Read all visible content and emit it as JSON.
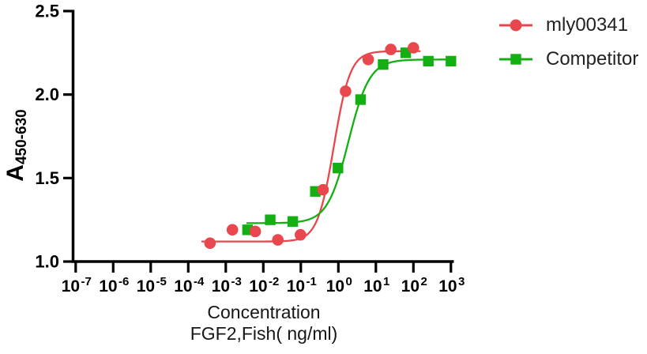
{
  "figure": {
    "y_axis_title": {
      "base": "A",
      "subscript": "450-630"
    },
    "x_axis_title_line1": "Concentration",
    "x_axis_title_line2": "FGF2,Fish( ng/ml)",
    "legend": [
      {
        "label": "mly00341",
        "marker": "circle",
        "color": "#e8474d"
      },
      {
        "label": "Competitor",
        "marker": "square",
        "color": "#13af13"
      }
    ]
  },
  "chart_data": {
    "type": "scatter",
    "subtype": "dose-response sigmoidal fit, log x-axis",
    "title": "",
    "xlabel": "Concentration FGF2,Fish( ng/ml)",
    "ylabel": "A450-630",
    "x_scale": "log10",
    "xlim_log10": [
      -7.35,
      3.1
    ],
    "ylim": [
      1.0,
      2.5
    ],
    "grid": false,
    "legend_position": "top-right outside",
    "x_tick_exponents": [
      -7,
      -6,
      -5,
      -4,
      -3,
      -2,
      -1,
      0,
      1,
      2,
      3
    ],
    "x_tick_base": "10",
    "y_ticks": [
      1.0,
      1.5,
      2.0,
      2.5
    ],
    "y_tick_labels": [
      "1.0",
      "1.5",
      "2.0",
      "2.5"
    ],
    "series": [
      {
        "name": "mly00341",
        "color": "#e8474d",
        "marker": "circle",
        "x_ng_ml": [
          0.00038,
          0.0015,
          0.0061,
          0.0244,
          0.0977,
          0.391,
          1.56,
          6.25,
          25,
          100
        ],
        "y_a450_630": [
          1.11,
          1.19,
          1.18,
          1.13,
          1.16,
          1.43,
          2.02,
          2.21,
          2.27,
          2.28
        ],
        "fit_4pl": {
          "bottom": 1.12,
          "top": 2.26,
          "log_ec50": -0.12,
          "hill": 2.0,
          "curve_log_range": [
            -3.65,
            2.22
          ]
        }
      },
      {
        "name": "Competitor",
        "color": "#13af13",
        "marker": "square",
        "x_ng_ml": [
          0.0038,
          0.0153,
          0.061,
          0.244,
          0.977,
          3.91,
          15.6,
          62.5,
          250,
          1000
        ],
        "y_a450_630": [
          1.19,
          1.25,
          1.24,
          1.42,
          1.56,
          1.97,
          2.18,
          2.25,
          2.2,
          2.2
        ],
        "fit_4pl": {
          "bottom": 1.23,
          "top": 2.21,
          "log_ec50": 0.27,
          "hill": 1.55,
          "curve_log_range": [
            -2.45,
            3.05
          ]
        }
      }
    ]
  },
  "style": {
    "axis_color": "#000000",
    "tick_label_color": "#000000",
    "legend_text_color": "#222222"
  }
}
